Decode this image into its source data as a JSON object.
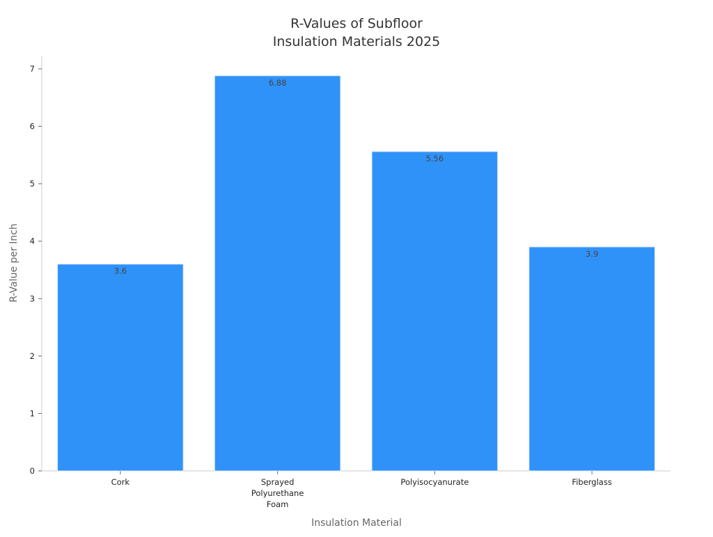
{
  "chart_data": {
    "type": "bar",
    "title": [
      "R-Values of Subfloor",
      "Insulation Materials 2025"
    ],
    "xlabel": "Insulation Material",
    "ylabel": "R-Value per Inch",
    "categories": [
      [
        "Cork"
      ],
      [
        "Sprayed",
        "Polyurethane",
        "Foam"
      ],
      [
        "Polyisocyanurate"
      ],
      [
        "Fiberglass"
      ]
    ],
    "values": [
      3.6,
      6.88,
      5.56,
      3.9
    ],
    "data_labels": [
      "3.6",
      "6.88",
      "5.56",
      "3.9"
    ],
    "yticks": [
      0,
      1,
      2,
      3,
      4,
      5,
      6,
      7
    ],
    "ylim": [
      0,
      7.23
    ],
    "bar_color": "#2f92f8",
    "bar_edge_color": "#d8e8fb",
    "grid": false,
    "legend": "none"
  }
}
